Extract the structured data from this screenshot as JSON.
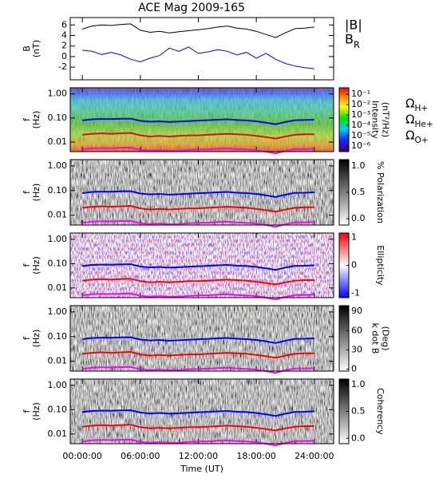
{
  "chart_data": [
    {
      "type": "line",
      "title": "ACE Mag 2009-165",
      "ylabel": [
        "B",
        "(nT)"
      ],
      "x": [
        0,
        1,
        2,
        3,
        4,
        5,
        6,
        7,
        8,
        9,
        10,
        11,
        12,
        13,
        14,
        15,
        16,
        17,
        18,
        19,
        20,
        21,
        22,
        23,
        24
      ],
      "xlim": [
        -1.25,
        26
      ],
      "ylim": [
        -4.4,
        7.4
      ],
      "yticks": [
        -2,
        0,
        2,
        4,
        6
      ],
      "series": [
        {
          "name": "|B|",
          "color": "#000000",
          "values": [
            5.2,
            5.8,
            6.0,
            5.9,
            6.1,
            6.2,
            5.0,
            4.6,
            4.8,
            4.5,
            4.7,
            4.9,
            5.1,
            5.3,
            5.6,
            5.8,
            5.4,
            5.2,
            4.8,
            4.2,
            3.6,
            4.5,
            5.3,
            5.4,
            5.6
          ]
        },
        {
          "name": "B_R",
          "color": "#0000ff",
          "values": [
            1.2,
            1.0,
            0.4,
            0.8,
            0.3,
            -0.5,
            -1.0,
            -0.3,
            0.2,
            1.6,
            1.0,
            1.8,
            0.6,
            0.9,
            1.3,
            1.0,
            0.3,
            0.8,
            -0.3,
            0.6,
            -0.5,
            -1.3,
            -1.8,
            -2.1,
            -2.3
          ]
        }
      ]
    },
    {
      "type": "spectrogram",
      "ylabel": [
        "f",
        "(Hz)"
      ],
      "log_y": true,
      "xlim": [
        -1.25,
        26
      ],
      "ylim": [
        0.004,
        1.8
      ],
      "yticks": [
        0.01,
        {
          "value": 0.1,
          "label": "0.10"
        },
        {
          "value": 1,
          "label": "1.00"
        }
      ],
      "colormap": "rainbow",
      "colorbar_label": [
        "Intensity",
        "(nT²/Hz)"
      ],
      "log_c": true,
      "clim": [
        2.8e-07,
        0.43
      ],
      "cticks": [
        {
          "value": 0.1,
          "label": "10⁻¹"
        },
        {
          "value": 0.01,
          "label": "10⁻²"
        },
        {
          "value": 0.001,
          "label": "10⁻³"
        },
        {
          "value": 0.0001,
          "label": "10⁻⁴"
        },
        {
          "value": 1e-05,
          "label": "10⁻⁵"
        },
        {
          "value": 1e-06,
          "label": "10⁻⁶"
        }
      ],
      "x": [
        0,
        1,
        2,
        3,
        4,
        5,
        6,
        7,
        8,
        9,
        10,
        11,
        12,
        13,
        14,
        15,
        16,
        17,
        18,
        19,
        20,
        21,
        22,
        23,
        24
      ],
      "series": [
        {
          "name": "Ω_H+",
          "color": "#0000ff",
          "values": [
            0.079,
            0.088,
            0.091,
            0.09,
            0.093,
            0.094,
            0.076,
            0.07,
            0.073,
            0.068,
            0.071,
            0.074,
            0.078,
            0.081,
            0.085,
            0.088,
            0.082,
            0.079,
            0.073,
            0.064,
            0.055,
            0.068,
            0.081,
            0.082,
            0.085
          ]
        },
        {
          "name": "Ω_He+",
          "color": "#ff0000",
          "values": [
            0.02,
            0.022,
            0.023,
            0.022,
            0.023,
            0.024,
            0.019,
            0.017,
            0.018,
            0.017,
            0.018,
            0.019,
            0.019,
            0.02,
            0.021,
            0.022,
            0.021,
            0.02,
            0.018,
            0.016,
            0.014,
            0.017,
            0.02,
            0.021,
            0.021
          ]
        },
        {
          "name": "Ω_O+",
          "color": "#ff00ff",
          "values": [
            0.0049,
            0.0055,
            0.0057,
            0.0056,
            0.0058,
            0.0059,
            0.0047,
            0.0044,
            0.0046,
            0.0043,
            0.0044,
            0.0047,
            0.0049,
            0.005,
            0.0053,
            0.0055,
            0.0051,
            0.0049,
            0.0046,
            0.004,
            0.0034,
            0.0043,
            0.0051,
            0.0051,
            0.0053
          ]
        }
      ]
    },
    {
      "type": "spectrogram",
      "ylabel": [
        "f",
        "(Hz)"
      ],
      "log_y": true,
      "xlim": [
        -1.25,
        26
      ],
      "ylim": [
        0.004,
        1.8
      ],
      "yticks": [
        0.01,
        {
          "value": 0.1,
          "label": "0.10"
        },
        {
          "value": 1,
          "label": "1.00"
        }
      ],
      "colormap": "gray_r",
      "colorbar_label": [
        "% Polarization"
      ],
      "clim": [
        -0.12,
        1.12
      ],
      "cticks": [
        {
          "value": 0,
          "label": "0.0"
        },
        0.5,
        {
          "value": 1,
          "label": "1.0"
        }
      ]
    },
    {
      "type": "spectrogram",
      "ylabel": [
        "f",
        "(Hz)"
      ],
      "log_y": true,
      "xlim": [
        -1.25,
        26
      ],
      "ylim": [
        0.004,
        1.8
      ],
      "yticks": [
        0.01,
        {
          "value": 0.1,
          "label": "0.10"
        },
        {
          "value": 1,
          "label": "1.00"
        }
      ],
      "colormap": "bwr",
      "colorbar_label": [
        "Ellipticity"
      ],
      "clim": [
        -1.15,
        1.15
      ],
      "cticks": [
        -1,
        0,
        1
      ]
    },
    {
      "type": "spectrogram",
      "ylabel": [
        "f",
        "(Hz)"
      ],
      "log_y": true,
      "xlim": [
        -1.25,
        26
      ],
      "ylim": [
        0.004,
        1.8
      ],
      "yticks": [
        0.01,
        {
          "value": 0.1,
          "label": "0.10"
        },
        {
          "value": 1,
          "label": "1.00"
        }
      ],
      "colormap": "gray_r",
      "colorbar_label": [
        "k dot B",
        "(Deg)"
      ],
      "clim": [
        -3,
        99
      ],
      "cticks": [
        0,
        30,
        60,
        90
      ]
    },
    {
      "type": "spectrogram",
      "ylabel": [
        "f",
        "(Hz)"
      ],
      "log_y": true,
      "xlim": [
        -1.25,
        26
      ],
      "ylim": [
        0.004,
        1.8
      ],
      "yticks": [
        0.01,
        {
          "value": 0.1,
          "label": "0.10"
        },
        {
          "value": 1,
          "label": "1.00"
        }
      ],
      "colormap": "gray_r",
      "colorbar_label": [
        "Coherency"
      ],
      "clim": [
        -0.1,
        1.1
      ],
      "cticks": [
        {
          "value": 0,
          "label": "0.0"
        },
        0.5,
        {
          "value": 1,
          "label": "1.0"
        }
      ],
      "xlabel": "Time (UT)",
      "xticks": [
        {
          "value": 0,
          "label": "00:00:00"
        },
        {
          "value": 6,
          "label": "06:00:00"
        },
        {
          "value": 12,
          "label": "12:00:00"
        },
        {
          "value": 18,
          "label": "18:00:00"
        },
        {
          "value": 24,
          "label": "24:00:00"
        }
      ]
    }
  ]
}
